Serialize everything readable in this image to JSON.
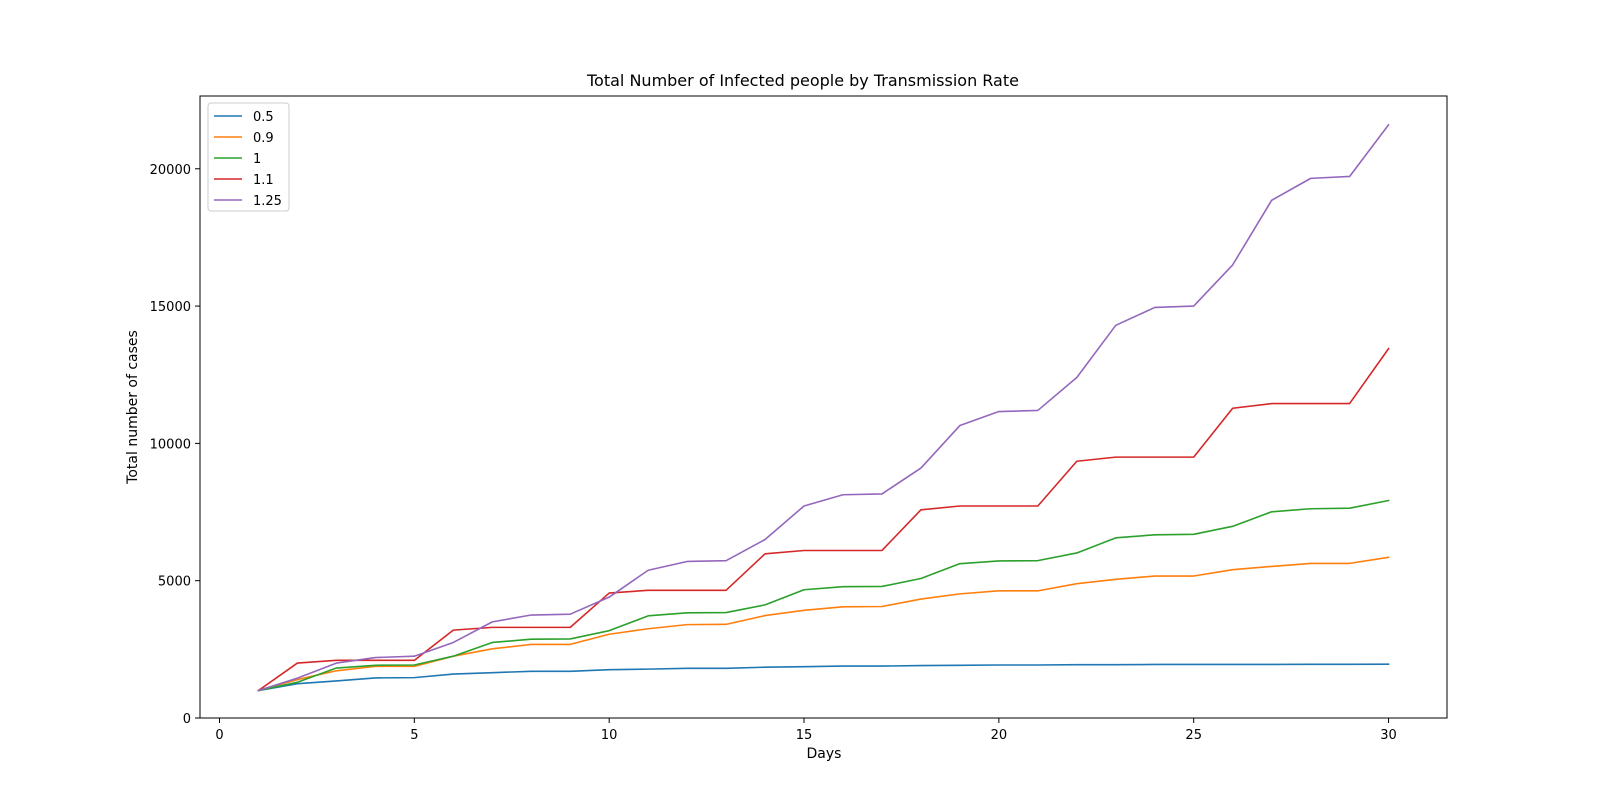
{
  "chart_data": {
    "type": "line",
    "title": "Total Number of Infected people by Transmission Rate",
    "xlabel": "Days",
    "ylabel": "Total number of cases",
    "xlim": [
      -0.5,
      31.5
    ],
    "ylim": [
      0,
      22650
    ],
    "x_ticks": [
      0,
      5,
      10,
      15,
      20,
      25,
      30
    ],
    "y_ticks": [
      0,
      5000,
      10000,
      15000,
      20000
    ],
    "grid": false,
    "legend_position": "top-left",
    "x": [
      1,
      2,
      3,
      4,
      5,
      6,
      7,
      8,
      9,
      10,
      11,
      12,
      13,
      14,
      15,
      16,
      17,
      18,
      19,
      20,
      21,
      22,
      23,
      24,
      25,
      26,
      27,
      28,
      29,
      30
    ],
    "series": [
      {
        "name": "0.5",
        "color": "#1f77b4",
        "values": [
          1000,
          1250,
          1350,
          1460,
          1470,
          1600,
          1650,
          1700,
          1700,
          1760,
          1780,
          1810,
          1810,
          1850,
          1870,
          1890,
          1890,
          1910,
          1920,
          1930,
          1930,
          1940,
          1940,
          1950,
          1950,
          1950,
          1950,
          1955,
          1955,
          1960
        ]
      },
      {
        "name": "0.9",
        "color": "#ff7f0e",
        "values": [
          1000,
          1400,
          1720,
          1880,
          1880,
          2250,
          2520,
          2680,
          2680,
          3050,
          3250,
          3400,
          3410,
          3730,
          3920,
          4050,
          4060,
          4330,
          4520,
          4630,
          4630,
          4890,
          5050,
          5170,
          5170,
          5400,
          5520,
          5630,
          5630,
          5850
        ]
      },
      {
        "name": "1",
        "color": "#2ca02c",
        "values": [
          1000,
          1300,
          1820,
          1920,
          1930,
          2250,
          2750,
          2870,
          2880,
          3180,
          3720,
          3830,
          3840,
          4120,
          4670,
          4780,
          4790,
          5080,
          5620,
          5720,
          5730,
          6010,
          6560,
          6670,
          6690,
          6980,
          7510,
          7620,
          7640,
          7920
        ]
      },
      {
        "name": "1.1",
        "color": "#d62728",
        "values": [
          1000,
          2000,
          2100,
          2100,
          2100,
          3200,
          3300,
          3300,
          3300,
          4550,
          4650,
          4650,
          4650,
          5980,
          6100,
          6100,
          6100,
          7580,
          7720,
          7720,
          7720,
          9350,
          9500,
          9500,
          9500,
          11280,
          11450,
          11450,
          11450,
          13450
        ]
      },
      {
        "name": "1.25",
        "color": "#9467bd",
        "values": [
          1000,
          1450,
          2000,
          2200,
          2250,
          2750,
          3500,
          3750,
          3780,
          4400,
          5380,
          5700,
          5730,
          6500,
          7720,
          8130,
          8160,
          9100,
          10650,
          11160,
          11200,
          12400,
          14300,
          14950,
          15000,
          16500,
          18850,
          19650,
          19720,
          21600
        ]
      }
    ]
  }
}
